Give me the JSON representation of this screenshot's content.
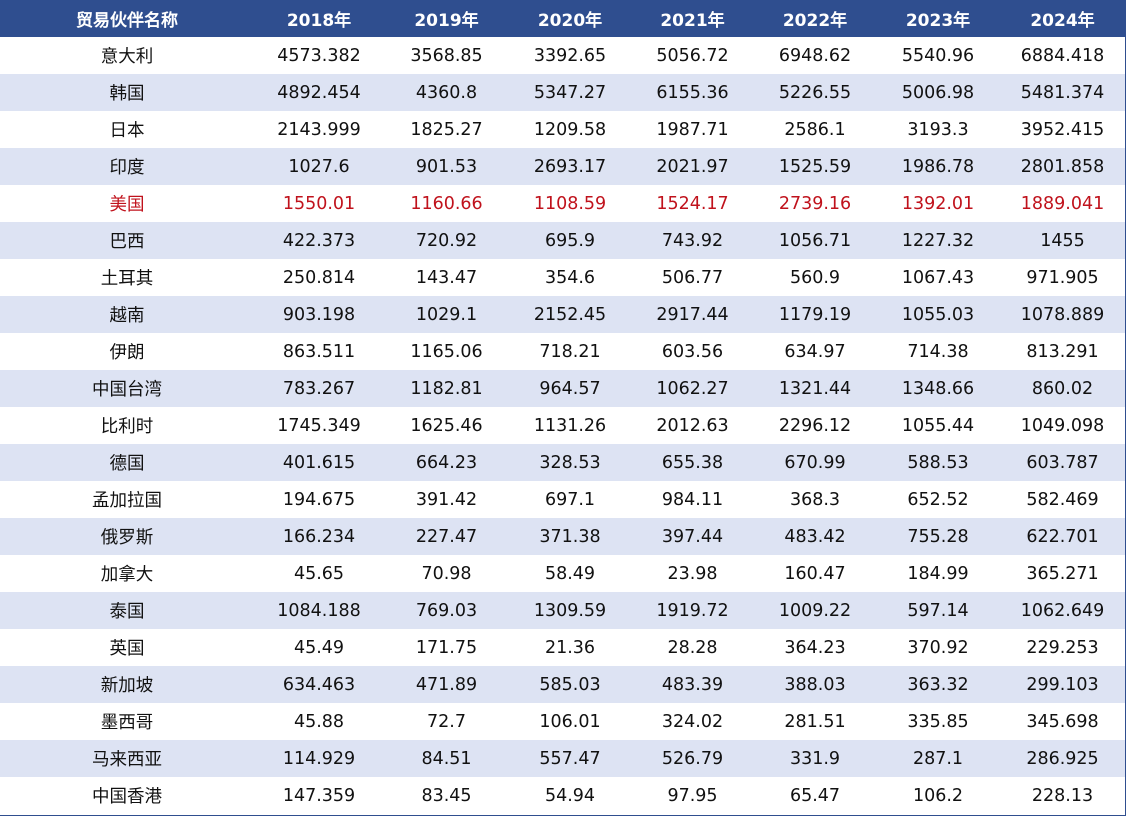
{
  "table": {
    "headers": [
      "贸易伙伴名称",
      "2018年",
      "2019年",
      "2020年",
      "2021年",
      "2022年",
      "2023年",
      "2024年"
    ],
    "highlight_color": "#c0121c",
    "header_bg": "#2f4e8f",
    "stripe_bg": "#dde3f3",
    "rows": [
      {
        "name": "意大利",
        "values": [
          "4573.382",
          "3568.85",
          "3392.65",
          "5056.72",
          "6948.62",
          "5540.96",
          "6884.418"
        ],
        "highlight": false
      },
      {
        "name": "韩国",
        "values": [
          "4892.454",
          "4360.8",
          "5347.27",
          "6155.36",
          "5226.55",
          "5006.98",
          "5481.374"
        ],
        "highlight": false
      },
      {
        "name": "日本",
        "values": [
          "2143.999",
          "1825.27",
          "1209.58",
          "1987.71",
          "2586.1",
          "3193.3",
          "3952.415"
        ],
        "highlight": false
      },
      {
        "name": "印度",
        "values": [
          "1027.6",
          "901.53",
          "2693.17",
          "2021.97",
          "1525.59",
          "1986.78",
          "2801.858"
        ],
        "highlight": false
      },
      {
        "name": "美国",
        "values": [
          "1550.01",
          "1160.66",
          "1108.59",
          "1524.17",
          "2739.16",
          "1392.01",
          "1889.041"
        ],
        "highlight": true
      },
      {
        "name": "巴西",
        "values": [
          "422.373",
          "720.92",
          "695.9",
          "743.92",
          "1056.71",
          "1227.32",
          "1455"
        ],
        "highlight": false
      },
      {
        "name": "土耳其",
        "values": [
          "250.814",
          "143.47",
          "354.6",
          "506.77",
          "560.9",
          "1067.43",
          "971.905"
        ],
        "highlight": false
      },
      {
        "name": "越南",
        "values": [
          "903.198",
          "1029.1",
          "2152.45",
          "2917.44",
          "1179.19",
          "1055.03",
          "1078.889"
        ],
        "highlight": false
      },
      {
        "name": "伊朗",
        "values": [
          "863.511",
          "1165.06",
          "718.21",
          "603.56",
          "634.97",
          "714.38",
          "813.291"
        ],
        "highlight": false
      },
      {
        "name": "中国台湾",
        "values": [
          "783.267",
          "1182.81",
          "964.57",
          "1062.27",
          "1321.44",
          "1348.66",
          "860.02"
        ],
        "highlight": false
      },
      {
        "name": "比利时",
        "values": [
          "1745.349",
          "1625.46",
          "1131.26",
          "2012.63",
          "2296.12",
          "1055.44",
          "1049.098"
        ],
        "highlight": false
      },
      {
        "name": "德国",
        "values": [
          "401.615",
          "664.23",
          "328.53",
          "655.38",
          "670.99",
          "588.53",
          "603.787"
        ],
        "highlight": false
      },
      {
        "name": "孟加拉国",
        "values": [
          "194.675",
          "391.42",
          "697.1",
          "984.11",
          "368.3",
          "652.52",
          "582.469"
        ],
        "highlight": false
      },
      {
        "name": "俄罗斯",
        "values": [
          "166.234",
          "227.47",
          "371.38",
          "397.44",
          "483.42",
          "755.28",
          "622.701"
        ],
        "highlight": false
      },
      {
        "name": "加拿大",
        "values": [
          "45.65",
          "70.98",
          "58.49",
          "23.98",
          "160.47",
          "184.99",
          "365.271"
        ],
        "highlight": false
      },
      {
        "name": "泰国",
        "values": [
          "1084.188",
          "769.03",
          "1309.59",
          "1919.72",
          "1009.22",
          "597.14",
          "1062.649"
        ],
        "highlight": false
      },
      {
        "name": "英国",
        "values": [
          "45.49",
          "171.75",
          "21.36",
          "28.28",
          "364.23",
          "370.92",
          "229.253"
        ],
        "highlight": false
      },
      {
        "name": "新加坡",
        "values": [
          "634.463",
          "471.89",
          "585.03",
          "483.39",
          "388.03",
          "363.32",
          "299.103"
        ],
        "highlight": false
      },
      {
        "name": "墨西哥",
        "values": [
          "45.88",
          "72.7",
          "106.01",
          "324.02",
          "281.51",
          "335.85",
          "345.698"
        ],
        "highlight": false
      },
      {
        "name": "马来西亚",
        "values": [
          "114.929",
          "84.51",
          "557.47",
          "526.79",
          "331.9",
          "287.1",
          "286.925"
        ],
        "highlight": false
      },
      {
        "name": "中国香港",
        "values": [
          "147.359",
          "83.45",
          "54.94",
          "97.95",
          "65.47",
          "106.2",
          "228.13"
        ],
        "highlight": false
      }
    ]
  },
  "chart_data": {
    "type": "table",
    "columns": [
      "贸易伙伴名称",
      "2018年",
      "2019年",
      "2020年",
      "2021年",
      "2022年",
      "2023年",
      "2024年"
    ],
    "rows": [
      [
        "意大利",
        4573.382,
        3568.85,
        3392.65,
        5056.72,
        6948.62,
        5540.96,
        6884.418
      ],
      [
        "韩国",
        4892.454,
        4360.8,
        5347.27,
        6155.36,
        5226.55,
        5006.98,
        5481.374
      ],
      [
        "日本",
        2143.999,
        1825.27,
        1209.58,
        1987.71,
        2586.1,
        3193.3,
        3952.415
      ],
      [
        "印度",
        1027.6,
        901.53,
        2693.17,
        2021.97,
        1525.59,
        1986.78,
        2801.858
      ],
      [
        "美国",
        1550.01,
        1160.66,
        1108.59,
        1524.17,
        2739.16,
        1392.01,
        1889.041
      ],
      [
        "巴西",
        422.373,
        720.92,
        695.9,
        743.92,
        1056.71,
        1227.32,
        1455
      ],
      [
        "土耳其",
        250.814,
        143.47,
        354.6,
        506.77,
        560.9,
        1067.43,
        971.905
      ],
      [
        "越南",
        903.198,
        1029.1,
        2152.45,
        2917.44,
        1179.19,
        1055.03,
        1078.889
      ],
      [
        "伊朗",
        863.511,
        1165.06,
        718.21,
        603.56,
        634.97,
        714.38,
        813.291
      ],
      [
        "中国台湾",
        783.267,
        1182.81,
        964.57,
        1062.27,
        1321.44,
        1348.66,
        860.02
      ],
      [
        "比利时",
        1745.349,
        1625.46,
        1131.26,
        2012.63,
        2296.12,
        1055.44,
        1049.098
      ],
      [
        "德国",
        401.615,
        664.23,
        328.53,
        655.38,
        670.99,
        588.53,
        603.787
      ],
      [
        "孟加拉国",
        194.675,
        391.42,
        697.1,
        984.11,
        368.3,
        652.52,
        582.469
      ],
      [
        "俄罗斯",
        166.234,
        227.47,
        371.38,
        397.44,
        483.42,
        755.28,
        622.701
      ],
      [
        "加拿大",
        45.65,
        70.98,
        58.49,
        23.98,
        160.47,
        184.99,
        365.271
      ],
      [
        "泰国",
        1084.188,
        769.03,
        1309.59,
        1919.72,
        1009.22,
        597.14,
        1062.649
      ],
      [
        "英国",
        45.49,
        171.75,
        21.36,
        28.28,
        364.23,
        370.92,
        229.253
      ],
      [
        "新加坡",
        634.463,
        471.89,
        585.03,
        483.39,
        388.03,
        363.32,
        299.103
      ],
      [
        "墨西哥",
        45.88,
        72.7,
        106.01,
        324.02,
        281.51,
        335.85,
        345.698
      ],
      [
        "马来西亚",
        114.929,
        84.51,
        557.47,
        526.79,
        331.9,
        287.1,
        286.925
      ],
      [
        "中国香港",
        147.359,
        83.45,
        54.94,
        97.95,
        65.47,
        106.2,
        228.13
      ]
    ],
    "highlighted_row": "美国"
  }
}
